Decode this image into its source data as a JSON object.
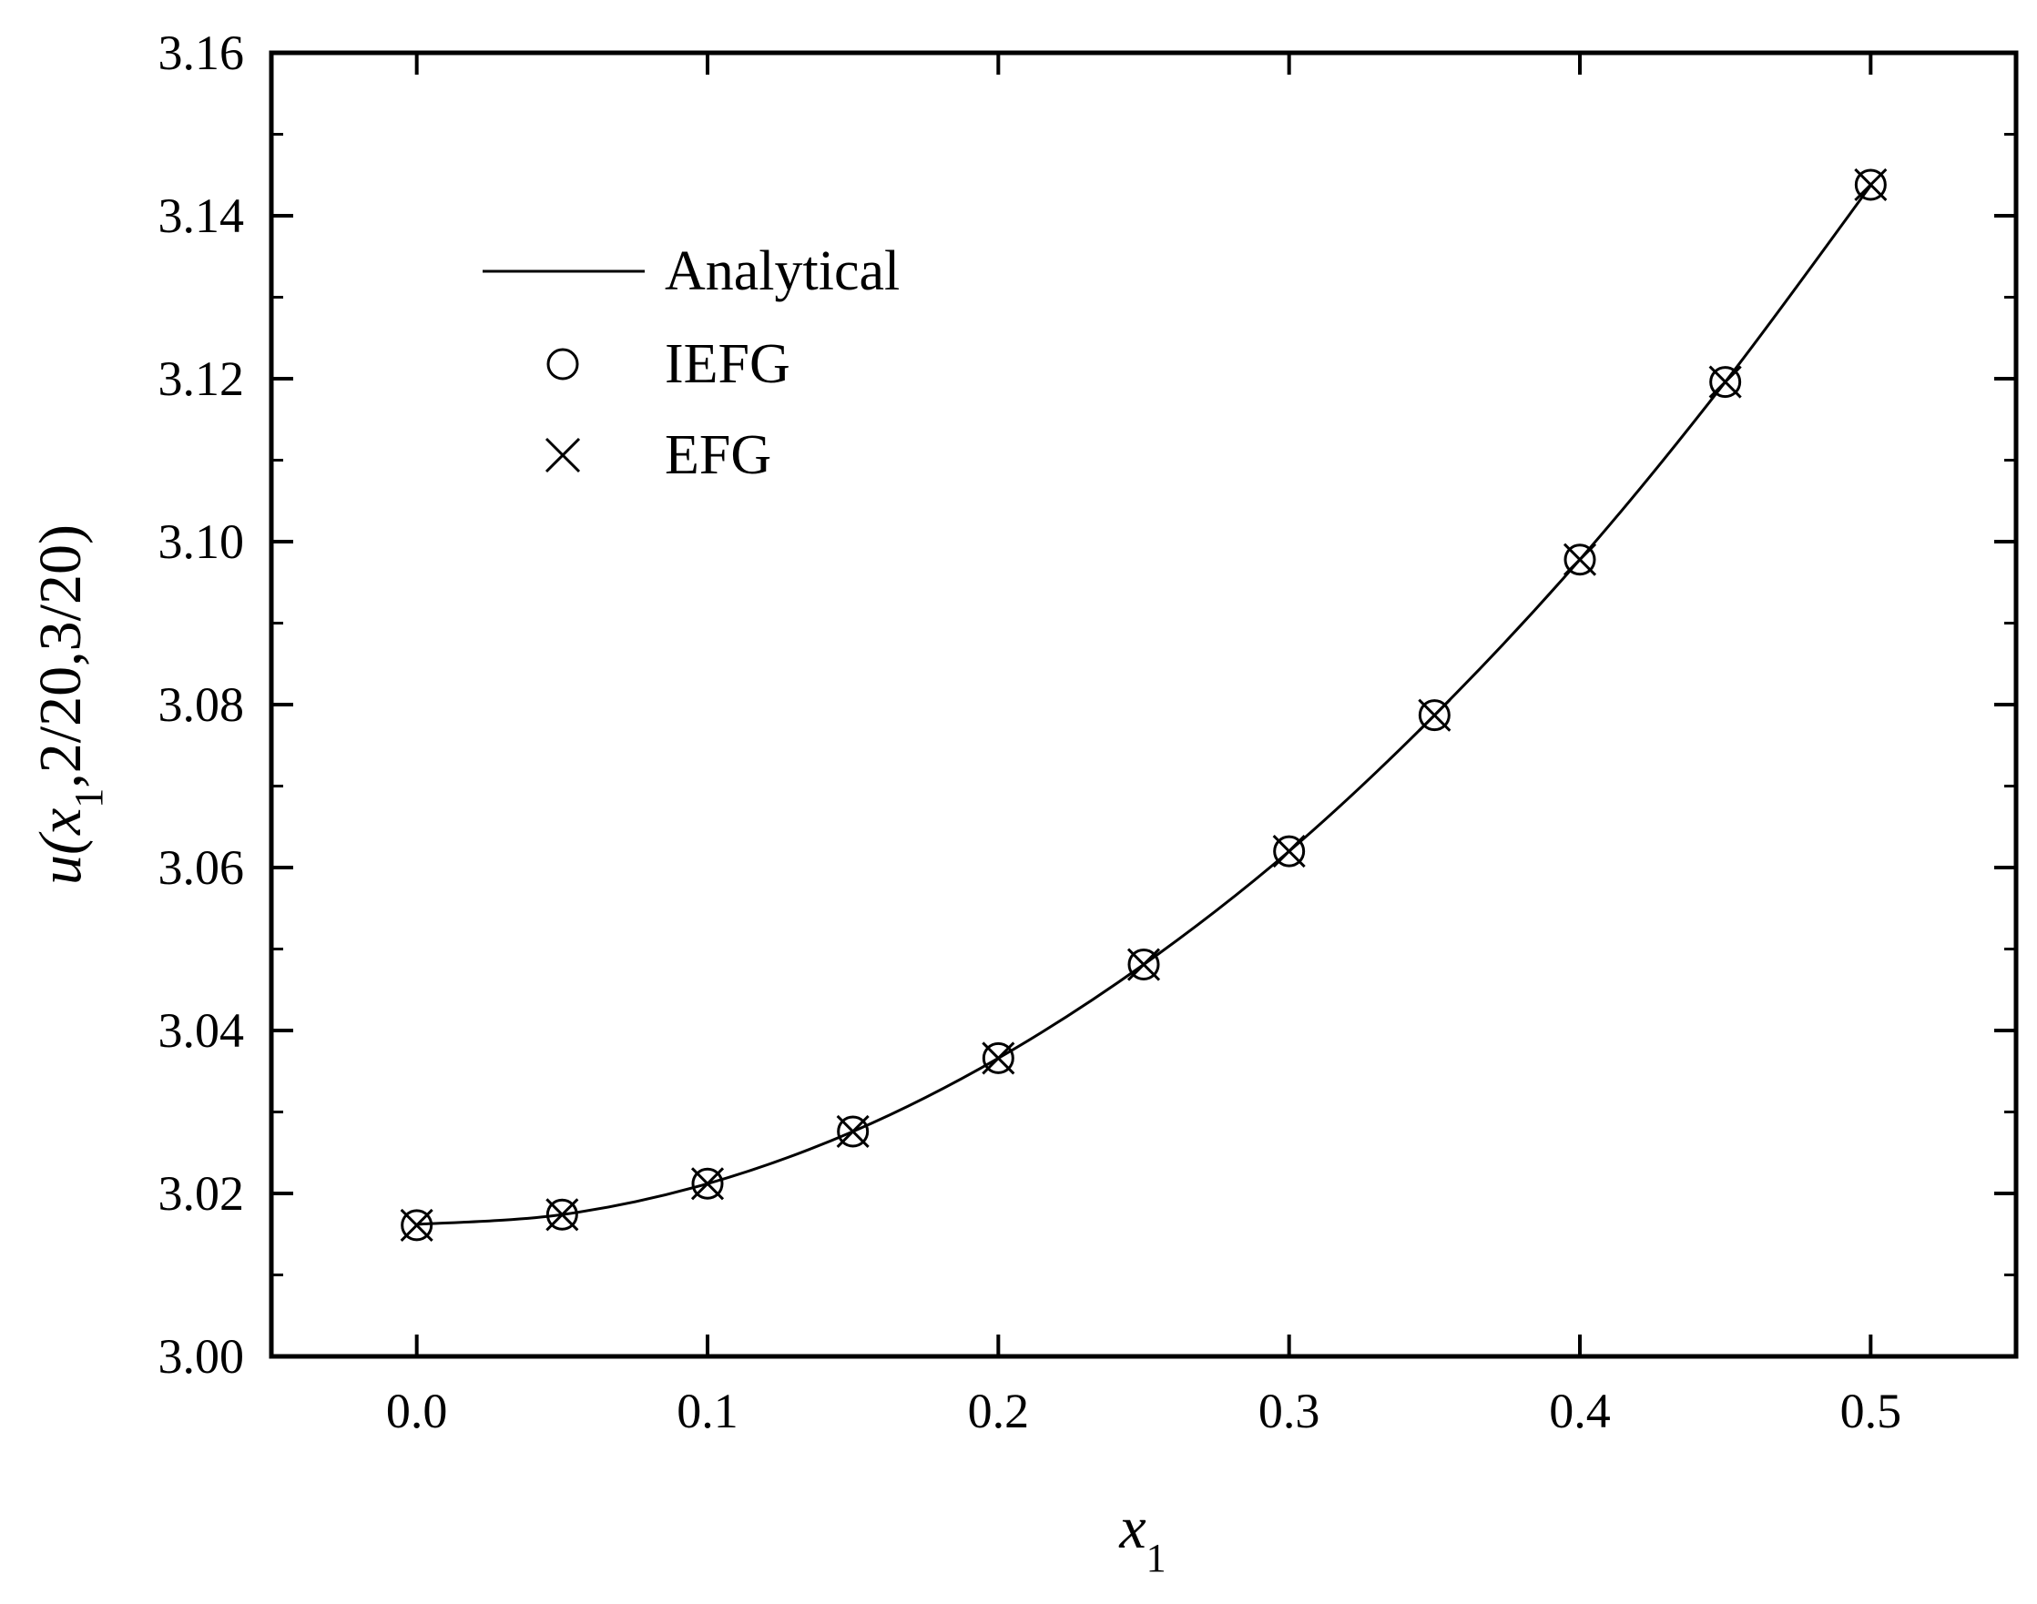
{
  "chart_data": {
    "type": "line",
    "title": "",
    "xlabel": {
      "main": "x",
      "sub": "1"
    },
    "ylabel": {
      "pre": "u(x",
      "sub": "1",
      "post": ",2/20,3/20)"
    },
    "xlim": [
      -0.05,
      0.55
    ],
    "ylim": [
      3.0,
      3.16
    ],
    "x_ticks": [
      "0.0",
      "0.1",
      "0.2",
      "0.3",
      "0.4",
      "0.5"
    ],
    "y_ticks": [
      "3.00",
      "3.02",
      "3.04",
      "3.06",
      "3.08",
      "3.10",
      "3.12",
      "3.14",
      "3.16"
    ],
    "grid": false,
    "legend_position": "top-left",
    "series": [
      {
        "name": "Analytical",
        "style": "line",
        "x": [
          0.0,
          0.05,
          0.1,
          0.15,
          0.2,
          0.25,
          0.3,
          0.35,
          0.4,
          0.45,
          0.5
        ],
        "y": [
          3.0162,
          3.0174,
          3.0212,
          3.0276,
          3.0366,
          3.0481,
          3.062,
          3.0787,
          3.0978,
          3.1196,
          3.1437
        ]
      },
      {
        "name": "IEFG",
        "style": "circle-marker",
        "x": [
          0.0,
          0.05,
          0.1,
          0.15,
          0.2,
          0.25,
          0.3,
          0.35,
          0.4,
          0.45,
          0.5
        ],
        "y": [
          3.0161,
          3.0174,
          3.0212,
          3.0276,
          3.0366,
          3.0481,
          3.062,
          3.0787,
          3.0978,
          3.1196,
          3.1438
        ]
      },
      {
        "name": "EFG",
        "style": "cross-marker",
        "x": [
          0.0,
          0.05,
          0.1,
          0.15,
          0.2,
          0.25,
          0.3,
          0.35,
          0.4,
          0.45,
          0.5
        ],
        "y": [
          3.0161,
          3.0174,
          3.0212,
          3.0276,
          3.0366,
          3.0481,
          3.062,
          3.0787,
          3.0978,
          3.1196,
          3.1438
        ]
      }
    ]
  }
}
